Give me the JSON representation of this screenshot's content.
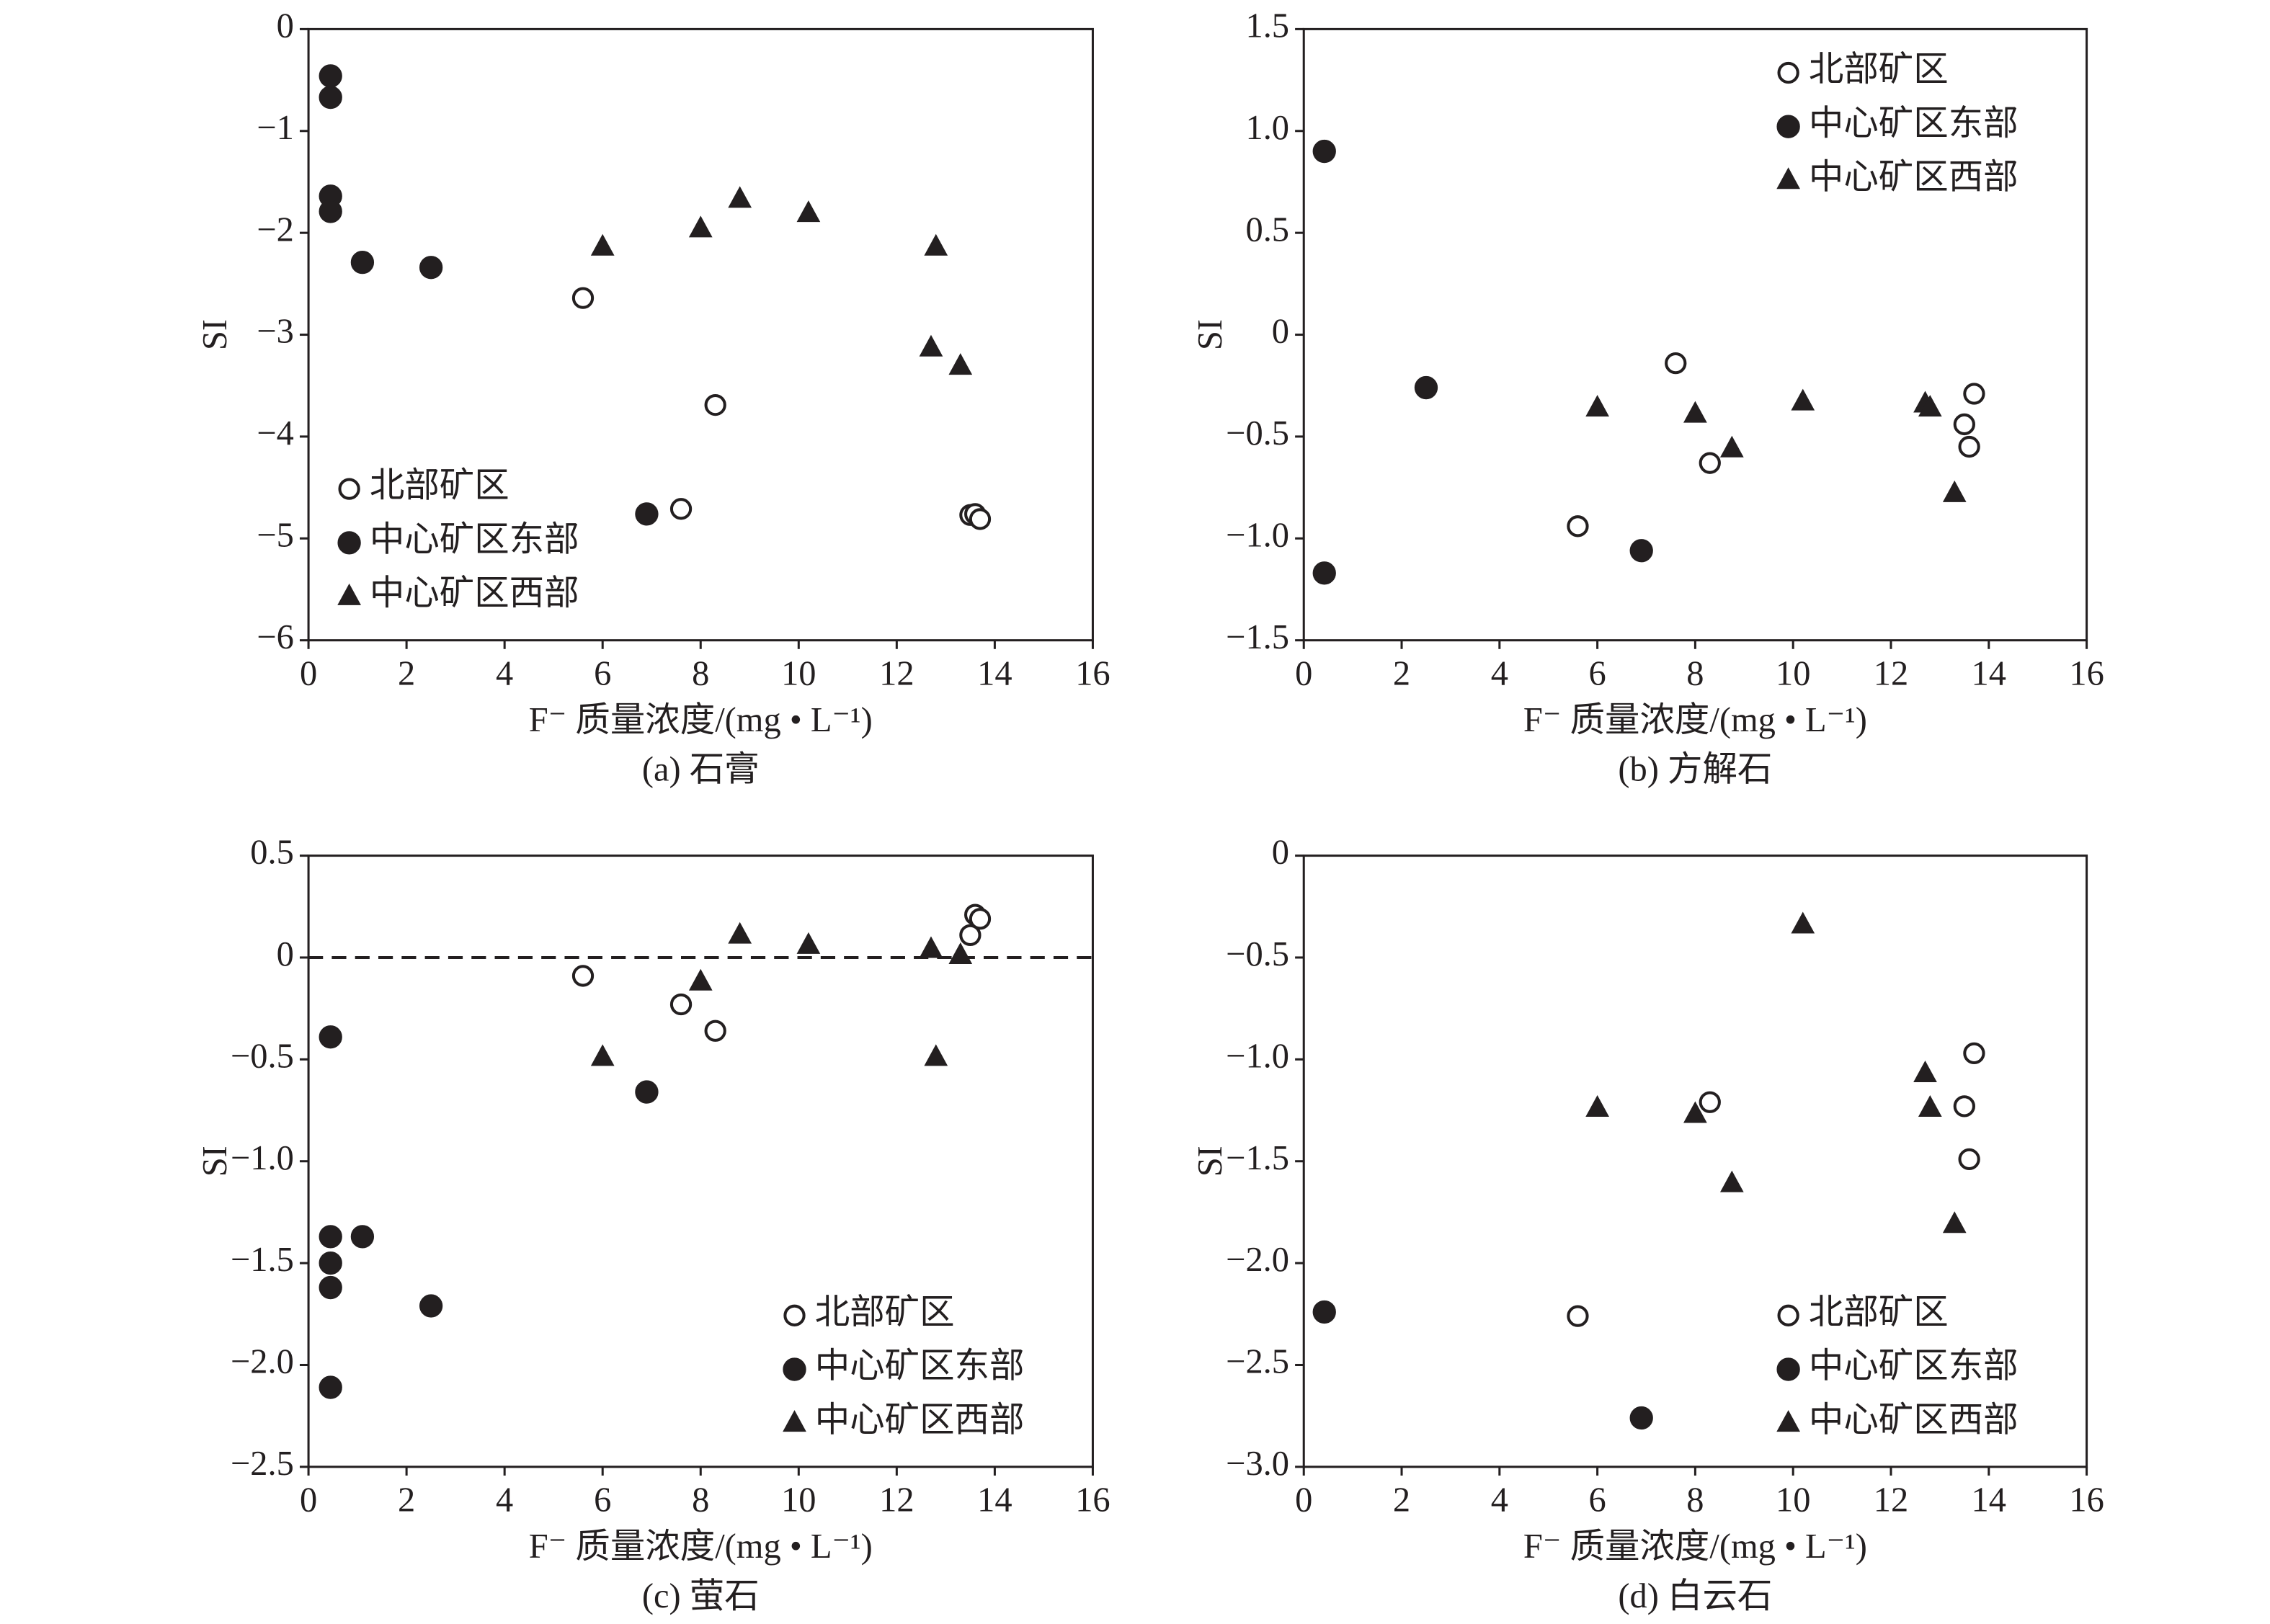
{
  "chart_data": [
    {
      "type": "scatter",
      "subtitle": "(a) 石膏",
      "xlabel": "F⁻ 质量浓度/(mg • L⁻¹)",
      "ylabel": "SI",
      "xlim": [
        0,
        16
      ],
      "xticks": [
        0,
        2,
        4,
        6,
        8,
        10,
        12,
        14,
        16
      ],
      "ylim": [
        -6,
        0
      ],
      "yticks": [
        {
          "value": -6,
          "label": "−6"
        },
        {
          "value": -5,
          "label": "−5"
        },
        {
          "value": -4,
          "label": "−4"
        },
        {
          "value": -3,
          "label": "−3"
        },
        {
          "value": -2,
          "label": "−2"
        },
        {
          "value": -1,
          "label": "−1"
        },
        0
      ],
      "legend": "lower-left",
      "series": [
        {
          "name": "北部矿区",
          "marker": "circle-open",
          "color": "#231f20",
          "x": [
            5.6,
            7.6,
            8.3,
            13.5,
            13.6,
            13.7
          ],
          "values": [
            -2.64,
            -4.71,
            -3.69,
            -4.77,
            -4.76,
            -4.81
          ]
        },
        {
          "name": "中心矿区东部",
          "marker": "circle",
          "color": "#231f20",
          "x": [
            0.45,
            0.45,
            0.45,
            0.45,
            1.1,
            2.5,
            6.9
          ],
          "values": [
            -0.46,
            -0.67,
            -1.64,
            -1.79,
            -2.29,
            -2.34,
            -4.76
          ]
        },
        {
          "name": "中心矿区西部",
          "marker": "triangle",
          "color": "#231f20",
          "x": [
            6.0,
            8.0,
            8.8,
            10.2,
            12.8,
            12.7,
            13.3
          ],
          "values": [
            -2.14,
            -1.96,
            -1.67,
            -1.81,
            -2.14,
            -3.13,
            -3.31
          ]
        }
      ]
    },
    {
      "type": "scatter",
      "subtitle": "(b) 方解石",
      "xlabel": "F⁻ 质量浓度/(mg • L⁻¹)",
      "ylabel": "SI",
      "xlim": [
        0,
        16
      ],
      "xticks": [
        0,
        2,
        4,
        6,
        8,
        10,
        12,
        14,
        16
      ],
      "ylim": [
        -1.5,
        1.5
      ],
      "yticks": [
        {
          "value": -1.5,
          "label": "−1.5"
        },
        {
          "value": -1,
          "label": "−1.0"
        },
        {
          "value": -0.5,
          "label": "−0.5"
        },
        0,
        0.5,
        {
          "value": 1,
          "label": "1.0"
        },
        1.5
      ],
      "legend": "upper-right",
      "series": [
        {
          "name": "北部矿区",
          "marker": "circle-open",
          "color": "#231f20",
          "x": [
            5.6,
            7.6,
            8.3,
            13.5,
            13.6,
            13.7
          ],
          "values": [
            -0.94,
            -0.14,
            -0.63,
            -0.44,
            -0.55,
            -0.29
          ]
        },
        {
          "name": "中心矿区东部",
          "marker": "circle",
          "color": "#231f20",
          "x": [
            0.42,
            0.42,
            2.5,
            6.9
          ],
          "values": [
            0.9,
            -1.17,
            -0.26,
            -1.06
          ]
        },
        {
          "name": "中心矿区西部",
          "marker": "triangle",
          "color": "#231f20",
          "x": [
            6.0,
            8.0,
            8.75,
            10.2,
            12.7,
            12.8,
            13.3
          ],
          "values": [
            -0.36,
            -0.39,
            -0.56,
            -0.33,
            -0.34,
            -0.36,
            -0.78
          ]
        }
      ]
    },
    {
      "type": "scatter",
      "subtitle": "(c) 萤石",
      "xlabel": "F⁻ 质量浓度/(mg • L⁻¹)",
      "ylabel": "SI",
      "xlim": [
        0,
        16
      ],
      "xticks": [
        0,
        2,
        4,
        6,
        8,
        10,
        12,
        14,
        16
      ],
      "ylim": [
        -2.5,
        0.5
      ],
      "yticks": [
        {
          "value": -2.5,
          "label": "−2.5"
        },
        {
          "value": -2,
          "label": "−2.0"
        },
        {
          "value": -1.5,
          "label": "−1.5"
        },
        {
          "value": -1,
          "label": "−1.0"
        },
        {
          "value": -0.5,
          "label": "−0.5"
        },
        0,
        0.5
      ],
      "legend": "lower-right",
      "reference_line": 0,
      "series": [
        {
          "name": "北部矿区",
          "marker": "circle-open",
          "color": "#231f20",
          "x": [
            5.6,
            7.6,
            8.3,
            13.5,
            13.6,
            13.7
          ],
          "values": [
            -0.09,
            -0.23,
            -0.36,
            0.11,
            0.21,
            0.19
          ]
        },
        {
          "name": "中心矿区东部",
          "marker": "circle",
          "color": "#231f20",
          "x": [
            0.45,
            0.45,
            0.45,
            0.45,
            0.45,
            1.1,
            2.5,
            6.9
          ],
          "values": [
            -0.39,
            -1.37,
            -1.5,
            -1.62,
            -2.11,
            -1.37,
            -1.71,
            -0.66
          ]
        },
        {
          "name": "中心矿区西部",
          "marker": "triangle",
          "color": "#231f20",
          "x": [
            6.0,
            8.0,
            8.8,
            10.2,
            12.7,
            12.8,
            13.3
          ],
          "values": [
            -0.49,
            -0.12,
            0.11,
            0.06,
            0.04,
            -0.49,
            0.01
          ]
        }
      ]
    },
    {
      "type": "scatter",
      "subtitle": "(d) 白云石",
      "xlabel": "F⁻ 质量浓度/(mg • L⁻¹)",
      "ylabel": "SI",
      "xlim": [
        0,
        16
      ],
      "xticks": [
        0,
        2,
        4,
        6,
        8,
        10,
        12,
        14,
        16
      ],
      "ylim": [
        -3,
        0
      ],
      "yticks": [
        {
          "value": -3,
          "label": "−3.0"
        },
        {
          "value": -2.5,
          "label": "−2.5"
        },
        {
          "value": -2,
          "label": "−2.0"
        },
        {
          "value": -1.5,
          "label": "−1.5"
        },
        {
          "value": -1,
          "label": "−1.0"
        },
        {
          "value": -0.5,
          "label": "−0.5"
        },
        0
      ],
      "legend": "lower-right",
      "series": [
        {
          "name": "北部矿区",
          "marker": "circle-open",
          "color": "#231f20",
          "x": [
            5.6,
            8.3,
            13.5,
            13.6,
            13.7
          ],
          "values": [
            -2.26,
            -1.21,
            -1.23,
            -1.49,
            -0.97
          ]
        },
        {
          "name": "中心矿区东部",
          "marker": "circle",
          "color": "#231f20",
          "x": [
            0.42,
            6.9
          ],
          "values": [
            -2.24,
            -2.76
          ]
        },
        {
          "name": "中心矿区西部",
          "marker": "triangle",
          "color": "#231f20",
          "x": [
            6.0,
            8.0,
            8.75,
            10.2,
            12.7,
            12.8,
            13.3
          ],
          "values": [
            -1.24,
            -1.27,
            -1.61,
            -0.34,
            -1.07,
            -1.24,
            -1.81
          ]
        }
      ]
    }
  ]
}
